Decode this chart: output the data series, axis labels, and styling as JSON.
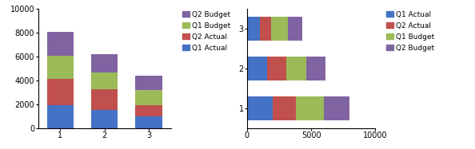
{
  "vertical": {
    "categories": [
      "1",
      "2",
      "3"
    ],
    "q1_actual": [
      1900,
      1550,
      1000
    ],
    "q2_actual": [
      2200,
      1700,
      900
    ],
    "q1_budget": [
      2000,
      1400,
      1300
    ],
    "q2_budget": [
      2000,
      1550,
      1200
    ],
    "ylim": [
      0,
      10000
    ],
    "yticks": [
      0,
      2000,
      4000,
      6000,
      8000,
      10000
    ]
  },
  "horizontal": {
    "categories": [
      "1",
      "2",
      "3"
    ],
    "q1_actual": [
      2000,
      1550,
      1000
    ],
    "q2_actual": [
      1800,
      1500,
      900
    ],
    "q1_budget": [
      2200,
      1550,
      1300
    ],
    "q2_budget": [
      2000,
      1500,
      1100
    ],
    "xlim": [
      0,
      10000
    ],
    "xticks": [
      0,
      5000,
      10000
    ]
  },
  "colors": {
    "Q1 Actual": "#4472C4",
    "Q2 Actual": "#C0504D",
    "Q1 Budget": "#9BBB59",
    "Q2 Budget": "#8064A2"
  },
  "bar_width": 0.6,
  "figsize": [
    5.94,
    1.87
  ],
  "dpi": 100,
  "left_legend": [
    "Q2 Budget",
    "Q1 Budget",
    "Q2 Actual",
    "Q1 Actual"
  ],
  "right_legend": [
    "Q1 Actual",
    "Q2 Actual",
    "Q1 Budget",
    "Q2 Budget"
  ]
}
